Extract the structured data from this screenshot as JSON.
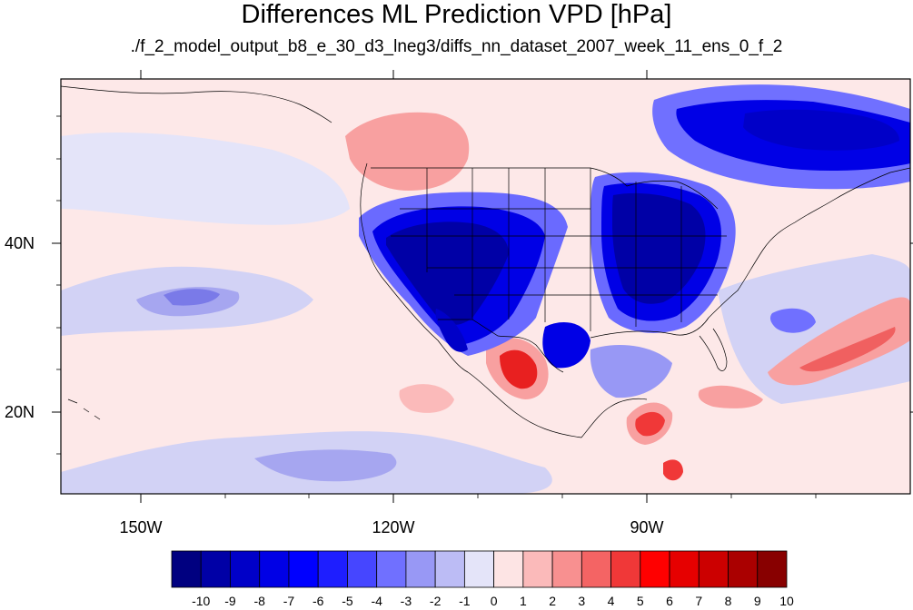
{
  "title": "Differences ML Prediction VPD [hPa]",
  "subtitle": "./f_2_model_output_b8_e_30_d3_lneg3/diffs_nn_dataset_2007_week_11_ens_0_f_2",
  "map": {
    "projection": "cylindrical-equidistant",
    "lon_range": [
      -160,
      -60
    ],
    "lat_range": [
      10,
      59
    ],
    "lon_ticks": [
      "150W",
      "120W",
      "90W"
    ],
    "lat_ticks": [
      "40N",
      "20N"
    ],
    "background_fill": "#fde8e8",
    "features": [
      "coastlines",
      "us-state-boundaries",
      "country-boundaries"
    ]
  },
  "colorbar": {
    "labels": [
      "-10",
      "-9",
      "-8",
      "-7",
      "-6",
      "-5",
      "-4",
      "-3",
      "-2",
      "-1",
      "0",
      "1",
      "2",
      "3",
      "4",
      "5",
      "6",
      "7",
      "8",
      "9",
      "10"
    ],
    "colors": [
      "#000080",
      "#0000a6",
      "#0000c8",
      "#0000e6",
      "#0000ff",
      "#1e1eff",
      "#4646ff",
      "#7070ff",
      "#9898f5",
      "#bcbcf5",
      "#e4e4f9",
      "#fde4e4",
      "#fbbaba",
      "#f89090",
      "#f46464",
      "#f03838",
      "#ff0000",
      "#e60000",
      "#cc0000",
      "#aa0000",
      "#880000"
    ]
  }
}
